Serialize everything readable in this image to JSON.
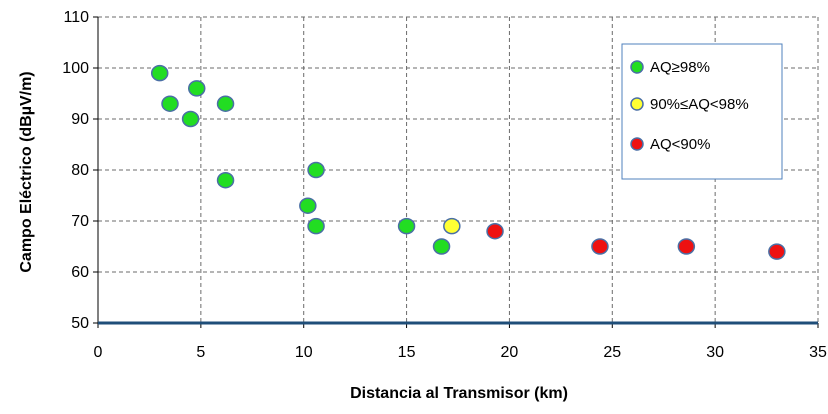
{
  "chart_data": {
    "type": "scatter",
    "xlabel": "Distancia al Transmisor (km)",
    "ylabel": "Campo Eléctrico (dBµV/m)",
    "xlim": [
      0,
      35
    ],
    "ylim": [
      50,
      110
    ],
    "xticks": [
      "0",
      "5",
      "10",
      "15",
      "20",
      "25",
      "30",
      "35"
    ],
    "yticks": [
      "50",
      "60",
      "70",
      "80",
      "90",
      "100",
      "110"
    ],
    "grid": true,
    "legend_position": "top-right",
    "series": [
      {
        "name": "AQ≥98%",
        "color": "#22dd22",
        "points": [
          {
            "x": 3.0,
            "y": 99
          },
          {
            "x": 3.5,
            "y": 93
          },
          {
            "x": 4.5,
            "y": 90
          },
          {
            "x": 4.8,
            "y": 96
          },
          {
            "x": 6.2,
            "y": 93
          },
          {
            "x": 6.2,
            "y": 78
          },
          {
            "x": 10.2,
            "y": 73
          },
          {
            "x": 10.6,
            "y": 80
          },
          {
            "x": 10.6,
            "y": 69
          },
          {
            "x": 15.0,
            "y": 69
          },
          {
            "x": 16.7,
            "y": 65
          }
        ]
      },
      {
        "name": "90%≤AQ<98%",
        "color": "#ffff33",
        "points": [
          {
            "x": 17.2,
            "y": 69
          }
        ]
      },
      {
        "name": "AQ<90%",
        "color": "#ee1111",
        "points": [
          {
            "x": 19.3,
            "y": 68
          },
          {
            "x": 24.4,
            "y": 65
          },
          {
            "x": 28.6,
            "y": 65
          },
          {
            "x": 33.0,
            "y": 64
          }
        ]
      }
    ]
  }
}
